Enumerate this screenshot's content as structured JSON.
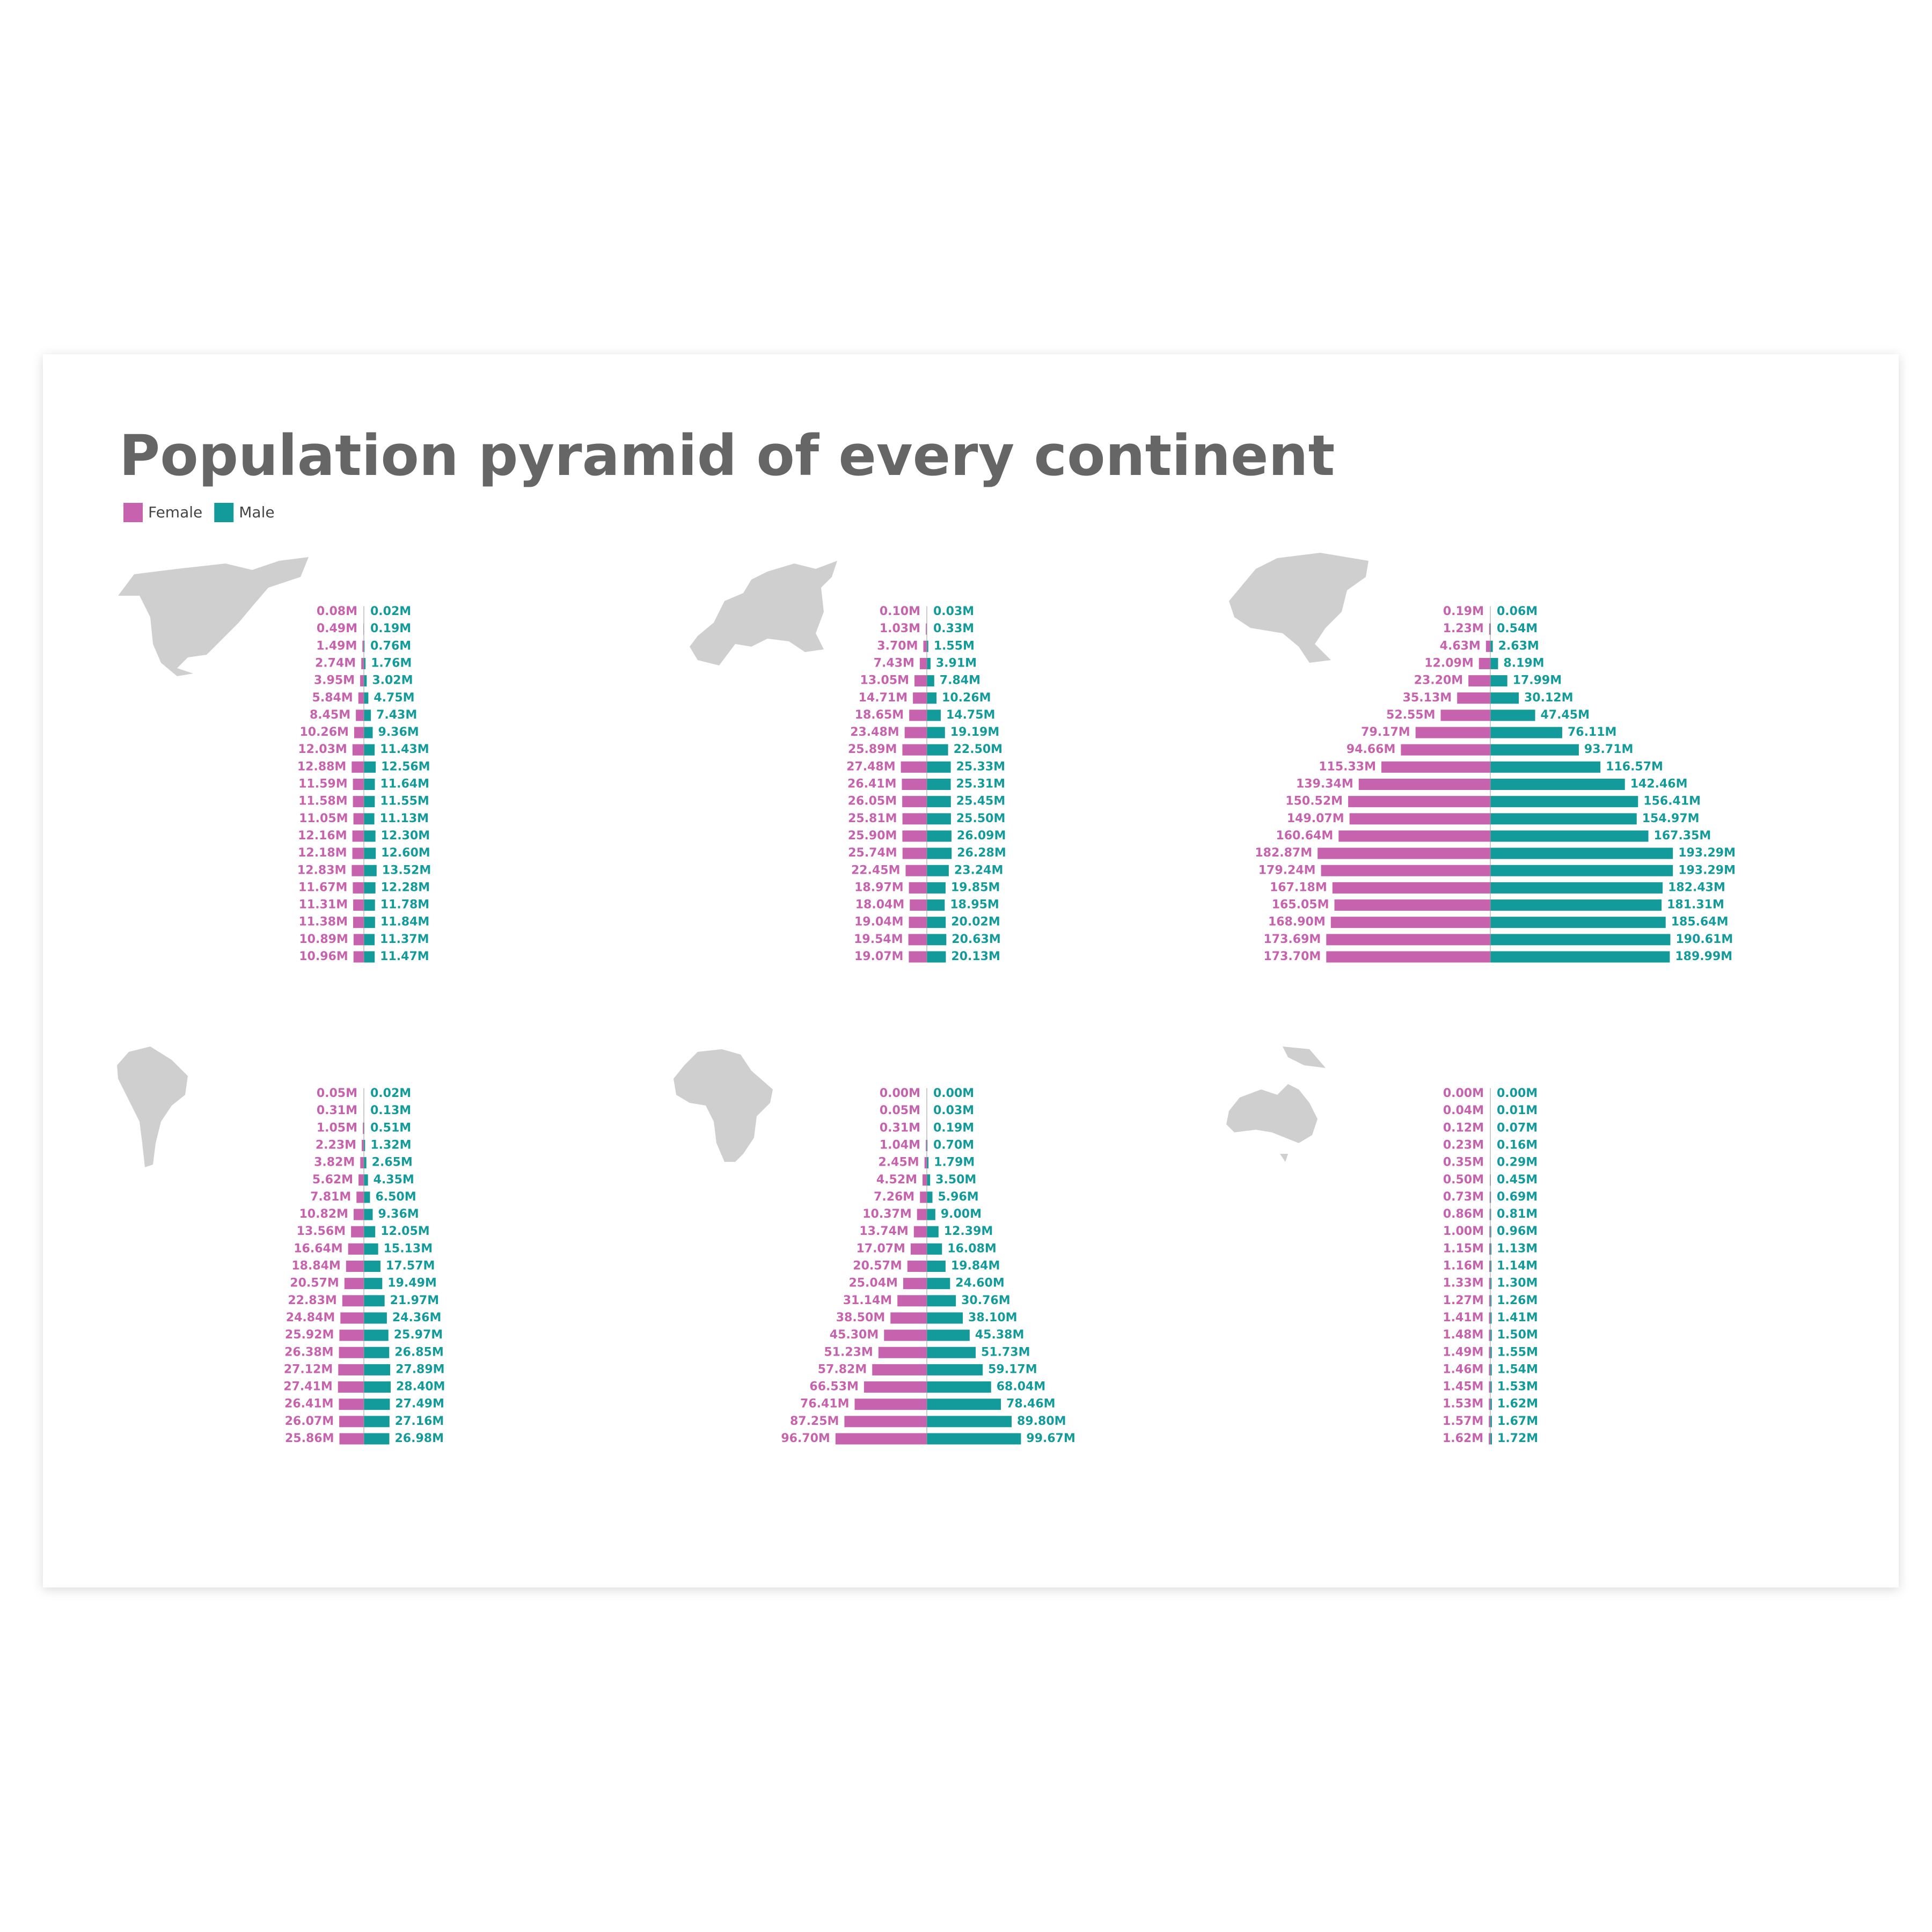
{
  "title": "Population pyramid of every continent",
  "chart_data": [
    {
      "type": "pyramid",
      "series": [
        {
          "name": "Female",
          "color": "#c762ae",
          "values": [
            0.08,
            0.49,
            1.49,
            2.74,
            3.95,
            5.84,
            8.45,
            10.26,
            12.03,
            12.88,
            11.59,
            11.58,
            11.05,
            12.16,
            12.18,
            12.83,
            11.67,
            11.31,
            11.38,
            10.89,
            10.96
          ],
          "value_labels": [
            "0.08M",
            "0.49M",
            "1.49M",
            "2.74M",
            "3.95M",
            "5.84M",
            "8.45M",
            "10.26M",
            "12.03M",
            "12.88M",
            "11.59M",
            "11.58M",
            "11.05M",
            "12.16M",
            "12.18M",
            "12.83M",
            "11.67M",
            "11.31M",
            "11.38M",
            "10.89M",
            "10.96M"
          ]
        },
        {
          "name": "Male",
          "color": "#139b9b",
          "values": [
            0.02,
            0.19,
            0.76,
            1.76,
            3.02,
            4.75,
            7.43,
            9.36,
            11.43,
            12.56,
            11.64,
            11.55,
            11.13,
            12.3,
            12.6,
            13.52,
            12.28,
            11.78,
            11.84,
            11.37,
            11.47
          ],
          "value_labels": [
            "0.02M",
            "0.19M",
            "0.76M",
            "1.76M",
            "3.02M",
            "4.75M",
            "7.43M",
            "9.36M",
            "11.43M",
            "12.56M",
            "11.64M",
            "11.55M",
            "11.13M",
            "12.30M",
            "12.60M",
            "13.52M",
            "12.28M",
            "11.78M",
            "11.84M",
            "11.37M",
            "11.47M"
          ]
        }
      ]
    },
    {
      "type": "pyramid",
      "series": [
        {
          "color": "#c762ae",
          "values": [
            0.1,
            1.03,
            3.7,
            7.43,
            13.05,
            14.71,
            18.65,
            23.48,
            25.89,
            27.48,
            26.41,
            26.05,
            25.81,
            25.9,
            25.74,
            22.45,
            18.97,
            18.04,
            19.04,
            19.54,
            19.07
          ],
          "value_labels": [
            "0.10M",
            "1.03M",
            "3.70M",
            "7.43M",
            "13.05M",
            "14.71M",
            "18.65M",
            "23.48M",
            "25.89M",
            "27.48M",
            "26.41M",
            "26.05M",
            "25.81M",
            "25.90M",
            "25.74M",
            "22.45M",
            "18.97M",
            "18.04M",
            "19.04M",
            "19.54M",
            "19.07M"
          ]
        },
        {
          "color": "#139b9b",
          "values": [
            0.03,
            0.33,
            1.55,
            3.91,
            7.84,
            10.26,
            14.75,
            19.19,
            22.5,
            25.33,
            25.31,
            25.45,
            25.5,
            26.09,
            26.28,
            23.24,
            19.85,
            18.95,
            20.02,
            20.63,
            20.13
          ],
          "value_labels": [
            "0.03M",
            "0.33M",
            "1.55M",
            "3.91M",
            "7.84M",
            "10.26M",
            "14.75M",
            "19.19M",
            "22.50M",
            "25.33M",
            "25.31M",
            "25.45M",
            "25.50M",
            "26.09M",
            "26.28M",
            "23.24M",
            "19.85M",
            "18.95M",
            "20.02M",
            "20.63M",
            "20.13M"
          ]
        }
      ]
    },
    {
      "type": "pyramid",
      "series": [
        {
          "color": "#c762ae",
          "values": [
            0.19,
            1.23,
            4.63,
            12.09,
            23.2,
            35.13,
            52.55,
            79.17,
            94.66,
            115.33,
            139.34,
            150.52,
            149.07,
            160.64,
            182.87,
            179.24,
            167.18,
            165.05,
            168.9,
            173.69,
            173.7
          ],
          "value_labels": [
            "0.19M",
            "1.23M",
            "4.63M",
            "12.09M",
            "23.20M",
            "35.13M",
            "52.55M",
            "79.17M",
            "94.66M",
            "115.33M",
            "139.34M",
            "150.52M",
            "149.07M",
            "160.64M",
            "182.87M",
            "179.24M",
            "167.18M",
            "165.05M",
            "168.90M",
            "173.69M",
            "173.70M"
          ]
        },
        {
          "color": "#139b9b",
          "values": [
            0.06,
            0.54,
            2.63,
            8.19,
            17.99,
            30.12,
            47.45,
            76.11,
            93.71,
            116.57,
            142.46,
            156.41,
            154.97,
            167.35,
            193.29,
            193.29,
            182.43,
            181.31,
            185.64,
            190.61,
            189.99
          ],
          "value_labels": [
            "0.06M",
            "0.54M",
            "2.63M",
            "8.19M",
            "17.99M",
            "30.12M",
            "47.45M",
            "76.11M",
            "93.71M",
            "116.57M",
            "142.46M",
            "156.41M",
            "154.97M",
            "167.35M",
            "193.29M",
            "193.29M",
            "182.43M",
            "181.31M",
            "185.64M",
            "190.61M",
            "189.99M"
          ]
        }
      ]
    },
    {
      "type": "pyramid",
      "series": [
        {
          "color": "#c762ae",
          "values": [
            0.05,
            0.31,
            1.05,
            2.23,
            3.82,
            5.62,
            7.81,
            10.82,
            13.56,
            16.64,
            18.84,
            20.57,
            22.83,
            24.84,
            25.92,
            26.38,
            27.12,
            27.41,
            26.41,
            26.07,
            25.86
          ],
          "value_labels": [
            "0.05M",
            "0.31M",
            "1.05M",
            "2.23M",
            "3.82M",
            "5.62M",
            "7.81M",
            "10.82M",
            "13.56M",
            "16.64M",
            "18.84M",
            "20.57M",
            "22.83M",
            "24.84M",
            "25.92M",
            "26.38M",
            "27.12M",
            "27.41M",
            "26.41M",
            "26.07M",
            "25.86M"
          ]
        },
        {
          "color": "#139b9b",
          "values": [
            0.02,
            0.13,
            0.51,
            1.32,
            2.65,
            4.35,
            6.5,
            9.36,
            12.05,
            15.13,
            17.57,
            19.49,
            21.97,
            24.36,
            25.97,
            26.85,
            27.89,
            28.4,
            27.49,
            27.16,
            26.98
          ],
          "value_labels": [
            "0.02M",
            "0.13M",
            "0.51M",
            "1.32M",
            "2.65M",
            "4.35M",
            "6.50M",
            "9.36M",
            "12.05M",
            "15.13M",
            "17.57M",
            "19.49M",
            "21.97M",
            "24.36M",
            "25.97M",
            "26.85M",
            "27.89M",
            "28.40M",
            "27.49M",
            "27.16M",
            "26.98M"
          ]
        }
      ]
    },
    {
      "type": "pyramid",
      "series": [
        {
          "color": "#c762ae",
          "values": [
            0.0,
            0.05,
            0.31,
            1.04,
            2.45,
            4.52,
            7.26,
            10.37,
            13.74,
            17.07,
            20.57,
            25.04,
            31.14,
            38.5,
            45.3,
            51.23,
            57.82,
            66.53,
            76.41,
            87.25,
            96.7
          ],
          "value_labels": [
            "0.00M",
            "0.05M",
            "0.31M",
            "1.04M",
            "2.45M",
            "4.52M",
            "7.26M",
            "10.37M",
            "13.74M",
            "17.07M",
            "20.57M",
            "25.04M",
            "31.14M",
            "38.50M",
            "45.30M",
            "51.23M",
            "57.82M",
            "66.53M",
            "76.41M",
            "87.25M",
            "96.70M"
          ]
        },
        {
          "color": "#139b9b",
          "values": [
            0.0,
            0.03,
            0.19,
            0.7,
            1.79,
            3.5,
            5.96,
            9.0,
            12.39,
            16.08,
            19.84,
            24.6,
            30.76,
            38.1,
            45.38,
            51.73,
            59.17,
            68.04,
            78.46,
            89.8,
            99.67
          ],
          "value_labels": [
            "0.00M",
            "0.03M",
            "0.19M",
            "0.70M",
            "1.79M",
            "3.50M",
            "5.96M",
            "9.00M",
            "12.39M",
            "16.08M",
            "19.84M",
            "24.60M",
            "30.76M",
            "38.10M",
            "45.38M",
            "51.73M",
            "59.17M",
            "68.04M",
            "78.46M",
            "89.80M",
            "99.67M"
          ]
        }
      ]
    },
    {
      "type": "pyramid",
      "series": [
        {
          "color": "#c762ae",
          "values": [
            0.0,
            0.04,
            0.12,
            0.23,
            0.35,
            0.5,
            0.73,
            0.86,
            1.0,
            1.15,
            1.16,
            1.33,
            1.27,
            1.41,
            1.48,
            1.49,
            1.46,
            1.45,
            1.53,
            1.57,
            1.62
          ],
          "value_labels": [
            "0.00M",
            "0.04M",
            "0.12M",
            "0.23M",
            "0.35M",
            "0.50M",
            "0.73M",
            "0.86M",
            "1.00M",
            "1.15M",
            "1.16M",
            "1.33M",
            "1.27M",
            "1.41M",
            "1.48M",
            "1.49M",
            "1.46M",
            "1.45M",
            "1.53M",
            "1.57M",
            "1.62M"
          ]
        },
        {
          "color": "#139b9b",
          "values": [
            0.0,
            0.01,
            0.07,
            0.16,
            0.29,
            0.45,
            0.69,
            0.81,
            0.96,
            1.13,
            1.14,
            1.3,
            1.26,
            1.41,
            1.5,
            1.55,
            1.54,
            1.53,
            1.62,
            1.67,
            1.72
          ],
          "value_labels": [
            "0.00M",
            "0.01M",
            "0.07M",
            "0.16M",
            "0.29M",
            "0.45M",
            "0.69M",
            "0.81M",
            "0.96M",
            "1.13M",
            "1.14M",
            "1.30M",
            "1.26M",
            "1.41M",
            "1.50M",
            "1.55M",
            "1.54M",
            "1.53M",
            "1.62M",
            "1.67M",
            "1.72M"
          ]
        }
      ]
    }
  ]
}
